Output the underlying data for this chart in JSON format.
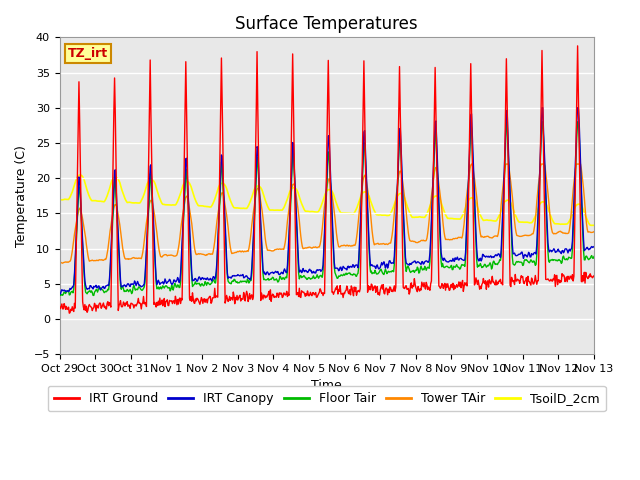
{
  "title": "Surface Temperatures",
  "xlabel": "Time",
  "ylabel": "Temperature (C)",
  "ylim": [
    -5,
    40
  ],
  "annotation_text": "TZ_irt",
  "annotation_bg": "#FFFF99",
  "annotation_border": "#CC8800",
  "annotation_text_color": "#CC0000",
  "series_colors": {
    "IRT Ground": "#FF0000",
    "IRT Canopy": "#0000CC",
    "Floor Tair": "#00BB00",
    "Tower TAir": "#FF8800",
    "TsoilD_2cm": "#FFFF00"
  },
  "plot_bg": "#E8E8E8",
  "grid_color": "#FFFFFF",
  "title_fontsize": 12,
  "axis_label_fontsize": 9,
  "tick_fontsize": 8,
  "legend_fontsize": 9
}
